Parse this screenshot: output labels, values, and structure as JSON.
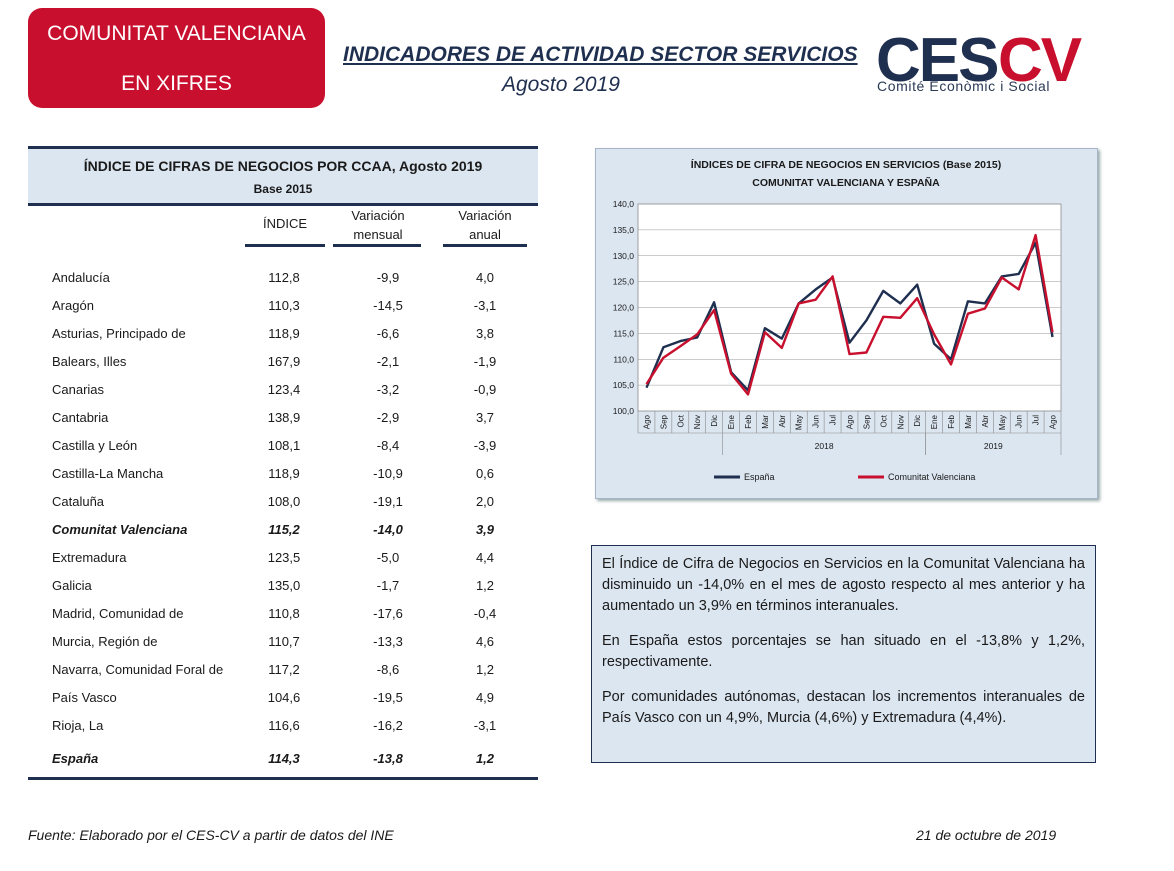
{
  "header": {
    "badge_line1": "COMUNITAT VALENCIANA",
    "badge_line2": "EN XIFRES",
    "title": "INDICADORES DE ACTIVIDAD SECTOR SERVICIOS",
    "subtitle": "Agosto 2019",
    "logo_text": "CESCV",
    "logo_subtitle": "Comité Econòmic i Social",
    "brand_color": "#c8102e",
    "navy_color": "#1f2f4f"
  },
  "table": {
    "title": "ÍNDICE DE CIFRAS DE NEGOCIOS POR CCAA, Agosto 2019",
    "base": "Base 2015",
    "col_indice": "ÍNDICE",
    "col_mensual_1": "Variación",
    "col_mensual_2": "mensual",
    "col_anual_1": "Variación",
    "col_anual_2": "anual",
    "rows": [
      {
        "name": "Andalucía",
        "indice": "112,8",
        "mensual": "-9,9",
        "anual": "4,0"
      },
      {
        "name": "Aragón",
        "indice": "110,3",
        "mensual": "-14,5",
        "anual": "-3,1"
      },
      {
        "name": "Asturias, Principado de",
        "indice": "118,9",
        "mensual": "-6,6",
        "anual": "3,8"
      },
      {
        "name": "Balears, Illes",
        "indice": "167,9",
        "mensual": "-2,1",
        "anual": "-1,9"
      },
      {
        "name": "Canarias",
        "indice": "123,4",
        "mensual": "-3,2",
        "anual": "-0,9"
      },
      {
        "name": "Cantabria",
        "indice": "138,9",
        "mensual": "-2,9",
        "anual": "3,7"
      },
      {
        "name": "Castilla y León",
        "indice": "108,1",
        "mensual": "-8,4",
        "anual": "-3,9"
      },
      {
        "name": "Castilla-La Mancha",
        "indice": "118,9",
        "mensual": "-10,9",
        "anual": "0,6"
      },
      {
        "name": "Cataluña",
        "indice": "108,0",
        "mensual": "-19,1",
        "anual": "2,0"
      },
      {
        "name": "Comunitat Valenciana",
        "indice": "115,2",
        "mensual": "-14,0",
        "anual": "3,9"
      },
      {
        "name": "Extremadura",
        "indice": "123,5",
        "mensual": "-5,0",
        "anual": "4,4"
      },
      {
        "name": "Galicia",
        "indice": "135,0",
        "mensual": "-1,7",
        "anual": "1,2"
      },
      {
        "name": "Madrid, Comunidad de",
        "indice": "110,8",
        "mensual": "-17,6",
        "anual": "-0,4"
      },
      {
        "name": "Murcia, Región de",
        "indice": "110,7",
        "mensual": "-13,3",
        "anual": "4,6"
      },
      {
        "name": "Navarra, Comunidad Foral de",
        "indice": "117,2",
        "mensual": "-8,6",
        "anual": "1,2"
      },
      {
        "name": "País Vasco",
        "indice": "104,6",
        "mensual": "-19,5",
        "anual": "4,9"
      },
      {
        "name": "Rioja, La",
        "indice": "116,6",
        "mensual": "-16,2",
        "anual": "-3,1"
      }
    ],
    "total": {
      "name": "España",
      "indice": "114,3",
      "mensual": "-13,8",
      "anual": "1,2"
    }
  },
  "chart_data": {
    "type": "line",
    "title_line1": "ÍNDICES DE CIFRA DE NEGOCIOS  EN SERVICIOS (Base 2015)",
    "title_line2": "COMUNITAT  VALENCIANA  Y ESPAÑA",
    "x": [
      "Ago",
      "Sep",
      "Oct",
      "Nov",
      "Dic",
      "Ene",
      "Feb",
      "Mar",
      "Abr",
      "May",
      "Jun",
      "Jul",
      "Ago",
      "Sep",
      "Oct",
      "Nov",
      "Dic",
      "Ene",
      "Feb",
      "Mar",
      "Abr",
      "May",
      "Jun",
      "Jul",
      "Ago"
    ],
    "year_groups": [
      {
        "label": "2018",
        "from": 5,
        "to": 16
      },
      {
        "label": "2019",
        "from": 17,
        "to": 24
      }
    ],
    "ylim": [
      100,
      140
    ],
    "yticks": [
      "100,0",
      "105,0",
      "110,0",
      "115,0",
      "120,0",
      "125,0",
      "130,0",
      "135,0",
      "140,0"
    ],
    "grid": true,
    "legend_position": "bottom",
    "series": [
      {
        "name": "España",
        "color": "#1f2f4f",
        "values": [
          104.5,
          112.3,
          113.5,
          114.2,
          121.0,
          107.5,
          104.0,
          116.0,
          114.0,
          120.8,
          123.5,
          125.8,
          113.2,
          117.5,
          123.2,
          120.8,
          124.4,
          113.0,
          110.0,
          121.2,
          120.8,
          126.0,
          126.5,
          132.5,
          114.3
        ]
      },
      {
        "name": "Comunitat Valenciana",
        "color": "#c8102e",
        "values": [
          105.2,
          110.3,
          112.5,
          114.8,
          119.5,
          107.2,
          103.2,
          115.2,
          112.2,
          120.8,
          121.5,
          126.0,
          111.0,
          111.3,
          118.2,
          118.0,
          121.8,
          114.8,
          109.0,
          118.8,
          119.8,
          125.8,
          123.5,
          134.0,
          115.2
        ]
      }
    ]
  },
  "commentary": {
    "p1": "El Índice de Cifra de Negocios en Servicios en la Comunitat Valenciana ha disminuido un -14,0% en el mes de agosto respecto al mes anterior y ha aumentado un 3,9% en términos interanuales.",
    "p2": "En España estos porcentajes se han situado en el -13,8% y 1,2%, respectivamente.",
    "p3": "Por comunidades autónomas, destacan los incrementos interanuales de País Vasco con un 4,9%, Murcia (4,6%) y Extremadura (4,4%)."
  },
  "footer": {
    "source": "Fuente: Elaborado por el CES-CV a partir de datos del INE",
    "date": "21 de octubre de 2019"
  }
}
